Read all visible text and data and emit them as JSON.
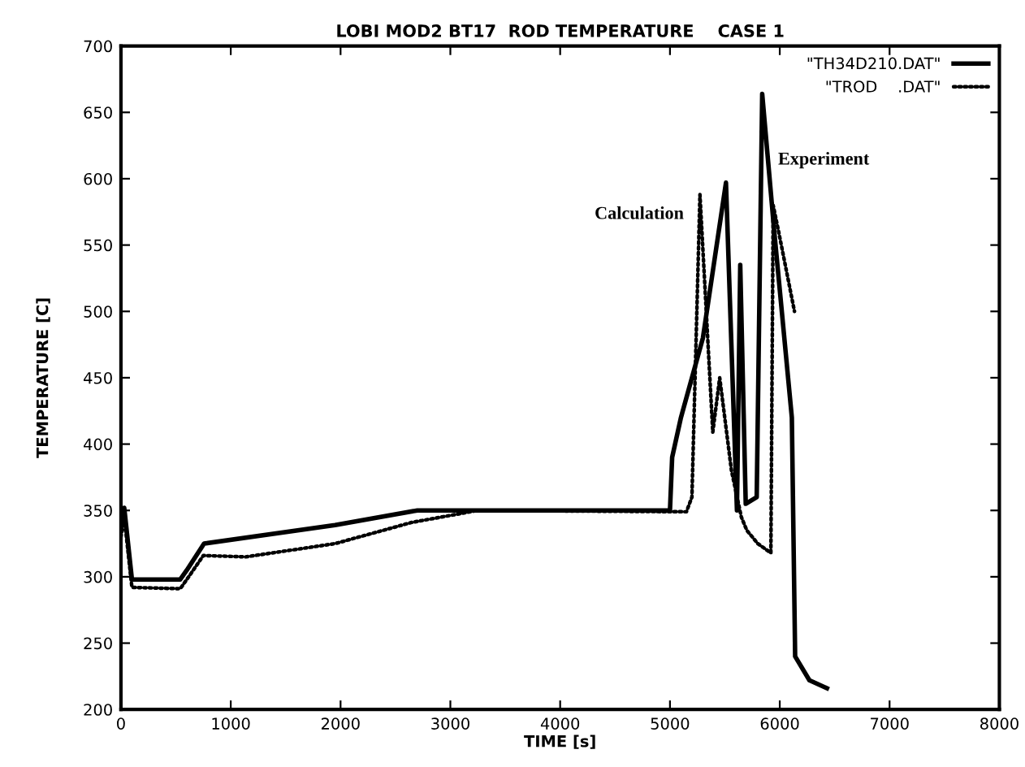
{
  "chart_data": {
    "type": "line",
    "title": "LOBI MOD2 BT17  ROD TEMPERATURE    CASE 1",
    "xlabel": "TIME [s]",
    "ylabel": "TEMPERATURE [C]",
    "series": [
      {
        "name": "\"TH34D210.DAT\"",
        "color": "#000000",
        "line_style": "solid",
        "x": [
          0,
          30,
          100,
          540,
          600,
          757,
          1950,
          2700,
          3000,
          5000,
          5020,
          5100,
          5300,
          5510,
          5610,
          5640,
          5690,
          5790,
          5840,
          5950,
          6110,
          6140,
          6270,
          6430
        ],
        "values": [
          340,
          352,
          298,
          298,
          305,
          325,
          339,
          350,
          350,
          350,
          390,
          420,
          480,
          597,
          350,
          535,
          355,
          360,
          664,
          560,
          420,
          240,
          222,
          216
        ]
      },
      {
        "name": "\"TROD    .DAT\"",
        "color": "#000000",
        "line_style": "dotted",
        "x": [
          0,
          30,
          100,
          540,
          600,
          750,
          1135,
          1950,
          2650,
          3250,
          5150,
          5200,
          5273,
          5390,
          5453,
          5560,
          5650,
          5700,
          5800,
          5919,
          5940,
          5990,
          6134
        ],
        "values": [
          330,
          345,
          292,
          291,
          298,
          316,
          315,
          325,
          341,
          350,
          349,
          360,
          588,
          409,
          450,
          380,
          345,
          335,
          325,
          318,
          580,
          560,
          500
        ]
      }
    ],
    "annotations": [
      "Calculation",
      "Experiment"
    ],
    "xlim": [
      0,
      8000
    ],
    "xticks": [
      0,
      1000,
      2000,
      3000,
      4000,
      5000,
      6000,
      7000,
      8000
    ],
    "ylim": [
      200,
      700
    ],
    "yticks": [
      200,
      250,
      300,
      350,
      400,
      450,
      500,
      550,
      600,
      650,
      700
    ],
    "grid": false,
    "legend": "top right",
    "marker": "none"
  }
}
